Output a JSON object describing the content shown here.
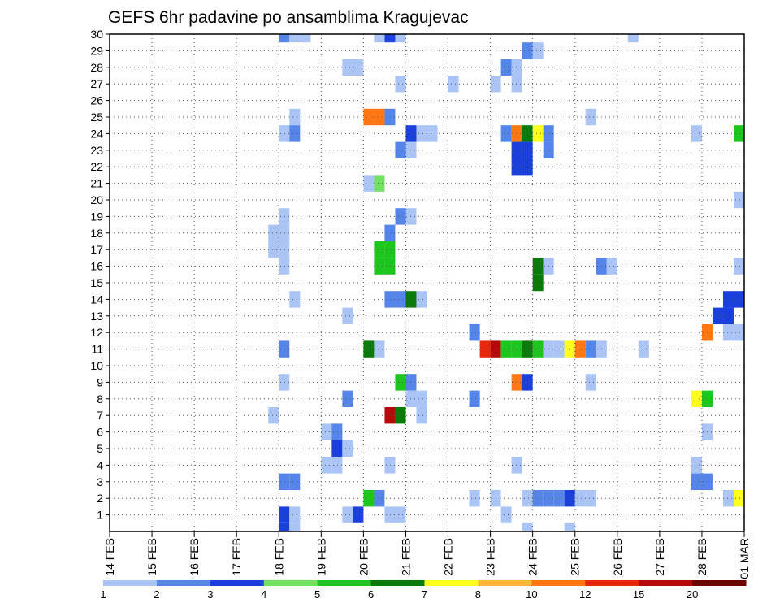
{
  "chart_data": {
    "type": "heatmap",
    "title": "GEFS 6hr padavine po ansamblima Kragujevac",
    "xlabel": "",
    "ylabel": "",
    "x_ticks": [
      "14 FEB",
      "15 FEB",
      "16 FEB",
      "17 FEB",
      "18 FEB",
      "19 FEB",
      "20 FEB",
      "21 FEB",
      "22 FEB",
      "23 FEB",
      "24 FEB",
      "25 FEB",
      "26 FEB",
      "27 FEB",
      "28 FEB",
      "01 MAR"
    ],
    "y_ticks": [
      "1",
      "2",
      "3",
      "4",
      "5",
      "6",
      "7",
      "8",
      "9",
      "10",
      "11",
      "12",
      "13",
      "14",
      "15",
      "16",
      "17",
      "18",
      "19",
      "20",
      "21",
      "22",
      "23",
      "24",
      "25",
      "26",
      "27",
      "28",
      "29",
      "30"
    ],
    "xlim": [
      0,
      60
    ],
    "ylim": [
      0,
      30
    ],
    "grid": true,
    "legend": {
      "position": "bottom",
      "levels": [
        1,
        2,
        3,
        4,
        5,
        6,
        7,
        8,
        10,
        12,
        15,
        20
      ],
      "colors": [
        "#a9c4f5",
        "#5585e8",
        "#1a3fdb",
        "#72e060",
        "#1ec51e",
        "#0a7a0a",
        "#ffff1e",
        "#ffb43c",
        "#ff7814",
        "#e8280a",
        "#b40a0a",
        "#6e0000"
      ]
    },
    "cells": [
      {
        "t": 16,
        "m": 30,
        "c": 2
      },
      {
        "t": 17,
        "m": 30,
        "c": 1
      },
      {
        "t": 18,
        "m": 30,
        "c": 1
      },
      {
        "t": 25,
        "m": 30,
        "c": 1
      },
      {
        "t": 26,
        "m": 30,
        "c": 3
      },
      {
        "t": 27,
        "m": 30,
        "c": 1
      },
      {
        "t": 49,
        "m": 30,
        "c": 1
      },
      {
        "t": 39,
        "m": 29,
        "c": 2
      },
      {
        "t": 40,
        "m": 29,
        "c": 1
      },
      {
        "t": 22,
        "m": 28,
        "c": 1
      },
      {
        "t": 23,
        "m": 28,
        "c": 1
      },
      {
        "t": 37,
        "m": 28,
        "c": 2
      },
      {
        "t": 38,
        "m": 28,
        "c": 1
      },
      {
        "t": 27,
        "m": 27,
        "c": 1
      },
      {
        "t": 32,
        "m": 27,
        "c": 1
      },
      {
        "t": 36,
        "m": 27,
        "c": 1
      },
      {
        "t": 38,
        "m": 27,
        "c": 1
      },
      {
        "t": 17,
        "m": 25,
        "c": 1
      },
      {
        "t": 24,
        "m": 25,
        "c": 9
      },
      {
        "t": 25,
        "m": 25,
        "c": 9
      },
      {
        "t": 26,
        "m": 25,
        "c": 2
      },
      {
        "t": 45,
        "m": 25,
        "c": 1
      },
      {
        "t": 16,
        "m": 24,
        "c": 1
      },
      {
        "t": 17,
        "m": 24,
        "c": 2
      },
      {
        "t": 28,
        "m": 24,
        "c": 3
      },
      {
        "t": 29,
        "m": 24,
        "c": 1
      },
      {
        "t": 30,
        "m": 24,
        "c": 1
      },
      {
        "t": 37,
        "m": 24,
        "c": 2
      },
      {
        "t": 38,
        "m": 24,
        "c": 9
      },
      {
        "t": 39,
        "m": 24,
        "c": 6
      },
      {
        "t": 40,
        "m": 24,
        "c": 7
      },
      {
        "t": 41,
        "m": 24,
        "c": 2
      },
      {
        "t": 55,
        "m": 24,
        "c": 1
      },
      {
        "t": 59,
        "m": 24,
        "c": 5
      },
      {
        "t": 27,
        "m": 23,
        "c": 2
      },
      {
        "t": 28,
        "m": 23,
        "c": 1
      },
      {
        "t": 38,
        "m": 23,
        "c": 3
      },
      {
        "t": 39,
        "m": 23,
        "c": 3
      },
      {
        "t": 41,
        "m": 23,
        "c": 2
      },
      {
        "t": 38,
        "m": 22,
        "c": 3
      },
      {
        "t": 39,
        "m": 22,
        "c": 3
      },
      {
        "t": 24,
        "m": 21,
        "c": 1
      },
      {
        "t": 25,
        "m": 21,
        "c": 4
      },
      {
        "t": 59,
        "m": 20,
        "c": 1
      },
      {
        "t": 16,
        "m": 19,
        "c": 1
      },
      {
        "t": 27,
        "m": 19,
        "c": 2
      },
      {
        "t": 28,
        "m": 19,
        "c": 1
      },
      {
        "t": 15,
        "m": 18,
        "c": 1
      },
      {
        "t": 16,
        "m": 18,
        "c": 1
      },
      {
        "t": 26,
        "m": 18,
        "c": 2
      },
      {
        "t": 15,
        "m": 17,
        "c": 1
      },
      {
        "t": 16,
        "m": 17,
        "c": 1
      },
      {
        "t": 25,
        "m": 17,
        "c": 5
      },
      {
        "t": 26,
        "m": 17,
        "c": 5
      },
      {
        "t": 16,
        "m": 16,
        "c": 1
      },
      {
        "t": 25,
        "m": 16,
        "c": 5
      },
      {
        "t": 26,
        "m": 16,
        "c": 5
      },
      {
        "t": 40,
        "m": 16,
        "c": 6
      },
      {
        "t": 41,
        "m": 16,
        "c": 1
      },
      {
        "t": 46,
        "m": 16,
        "c": 2
      },
      {
        "t": 47,
        "m": 16,
        "c": 1
      },
      {
        "t": 59,
        "m": 16,
        "c": 1
      },
      {
        "t": 40,
        "m": 15,
        "c": 6
      },
      {
        "t": 17,
        "m": 14,
        "c": 1
      },
      {
        "t": 26,
        "m": 14,
        "c": 2
      },
      {
        "t": 27,
        "m": 14,
        "c": 2
      },
      {
        "t": 28,
        "m": 14,
        "c": 6
      },
      {
        "t": 29,
        "m": 14,
        "c": 1
      },
      {
        "t": 58,
        "m": 14,
        "c": 3
      },
      {
        "t": 59,
        "m": 14,
        "c": 3
      },
      {
        "t": 22,
        "m": 13,
        "c": 1
      },
      {
        "t": 57,
        "m": 13,
        "c": 3
      },
      {
        "t": 58,
        "m": 13,
        "c": 3
      },
      {
        "t": 34,
        "m": 12,
        "c": 2
      },
      {
        "t": 56,
        "m": 12,
        "c": 9
      },
      {
        "t": 58,
        "m": 12,
        "c": 1
      },
      {
        "t": 59,
        "m": 12,
        "c": 1
      },
      {
        "t": 16,
        "m": 11,
        "c": 2
      },
      {
        "t": 24,
        "m": 11,
        "c": 6
      },
      {
        "t": 25,
        "m": 11,
        "c": 1
      },
      {
        "t": 35,
        "m": 11,
        "c": 10
      },
      {
        "t": 36,
        "m": 11,
        "c": 11
      },
      {
        "t": 37,
        "m": 11,
        "c": 5
      },
      {
        "t": 38,
        "m": 11,
        "c": 5
      },
      {
        "t": 39,
        "m": 11,
        "c": 6
      },
      {
        "t": 40,
        "m": 11,
        "c": 5
      },
      {
        "t": 41,
        "m": 11,
        "c": 1
      },
      {
        "t": 42,
        "m": 11,
        "c": 1
      },
      {
        "t": 43,
        "m": 11,
        "c": 7
      },
      {
        "t": 44,
        "m": 11,
        "c": 9
      },
      {
        "t": 45,
        "m": 11,
        "c": 2
      },
      {
        "t": 46,
        "m": 11,
        "c": 1
      },
      {
        "t": 50,
        "m": 11,
        "c": 1
      },
      {
        "t": 16,
        "m": 9,
        "c": 1
      },
      {
        "t": 27,
        "m": 9,
        "c": 5
      },
      {
        "t": 28,
        "m": 9,
        "c": 2
      },
      {
        "t": 38,
        "m": 9,
        "c": 9
      },
      {
        "t": 39,
        "m": 9,
        "c": 3
      },
      {
        "t": 45,
        "m": 9,
        "c": 1
      },
      {
        "t": 22,
        "m": 8,
        "c": 2
      },
      {
        "t": 28,
        "m": 8,
        "c": 1
      },
      {
        "t": 29,
        "m": 8,
        "c": 1
      },
      {
        "t": 34,
        "m": 8,
        "c": 2
      },
      {
        "t": 55,
        "m": 8,
        "c": 7
      },
      {
        "t": 56,
        "m": 8,
        "c": 5
      },
      {
        "t": 15,
        "m": 7,
        "c": 1
      },
      {
        "t": 26,
        "m": 7,
        "c": 11
      },
      {
        "t": 27,
        "m": 7,
        "c": 6
      },
      {
        "t": 29,
        "m": 7,
        "c": 1
      },
      {
        "t": 20,
        "m": 6,
        "c": 1
      },
      {
        "t": 21,
        "m": 6,
        "c": 2
      },
      {
        "t": 56,
        "m": 6,
        "c": 1
      },
      {
        "t": 21,
        "m": 5,
        "c": 3
      },
      {
        "t": 22,
        "m": 5,
        "c": 1
      },
      {
        "t": 20,
        "m": 4,
        "c": 1
      },
      {
        "t": 21,
        "m": 4,
        "c": 1
      },
      {
        "t": 26,
        "m": 4,
        "c": 1
      },
      {
        "t": 38,
        "m": 4,
        "c": 1
      },
      {
        "t": 55,
        "m": 4,
        "c": 1
      },
      {
        "t": 16,
        "m": 3,
        "c": 2
      },
      {
        "t": 17,
        "m": 3,
        "c": 2
      },
      {
        "t": 55,
        "m": 3,
        "c": 2
      },
      {
        "t": 56,
        "m": 3,
        "c": 2
      },
      {
        "t": 24,
        "m": 2,
        "c": 5
      },
      {
        "t": 25,
        "m": 2,
        "c": 2
      },
      {
        "t": 34,
        "m": 2,
        "c": 1
      },
      {
        "t": 36,
        "m": 2,
        "c": 1
      },
      {
        "t": 39,
        "m": 2,
        "c": 1
      },
      {
        "t": 40,
        "m": 2,
        "c": 2
      },
      {
        "t": 41,
        "m": 2,
        "c": 2
      },
      {
        "t": 42,
        "m": 2,
        "c": 2
      },
      {
        "t": 43,
        "m": 2,
        "c": 3
      },
      {
        "t": 44,
        "m": 2,
        "c": 1
      },
      {
        "t": 45,
        "m": 2,
        "c": 1
      },
      {
        "t": 58,
        "m": 2,
        "c": 1
      },
      {
        "t": 59,
        "m": 2,
        "c": 7
      },
      {
        "t": 16,
        "m": 1,
        "c": 3
      },
      {
        "t": 17,
        "m": 1,
        "c": 1
      },
      {
        "t": 22,
        "m": 1,
        "c": 1
      },
      {
        "t": 23,
        "m": 1,
        "c": 3
      },
      {
        "t": 26,
        "m": 1,
        "c": 1
      },
      {
        "t": 27,
        "m": 1,
        "c": 1
      },
      {
        "t": 37,
        "m": 1,
        "c": 1
      },
      {
        "t": 16,
        "m": 0,
        "c": 3
      },
      {
        "t": 17,
        "m": 0,
        "c": 1
      },
      {
        "t": 39,
        "m": 0,
        "c": 1
      },
      {
        "t": 43,
        "m": 0,
        "c": 1
      }
    ]
  }
}
